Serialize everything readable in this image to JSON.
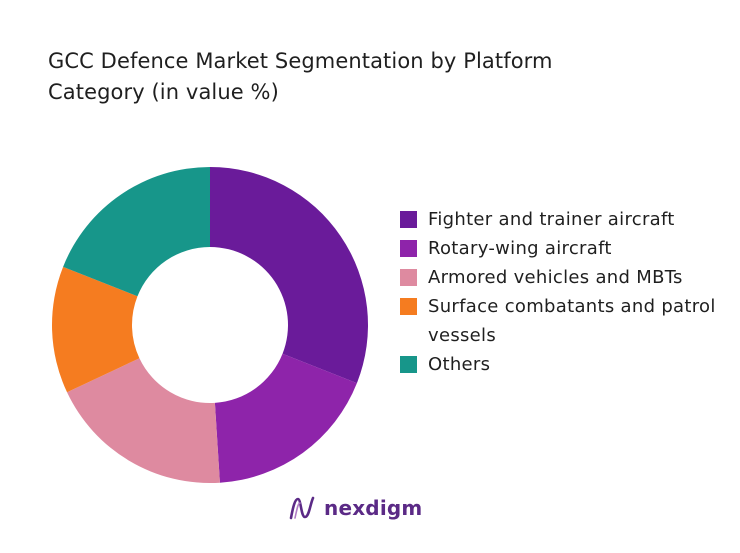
{
  "chart_data": {
    "type": "pie",
    "donut": true,
    "title": "GCC Defence Market Segmentation by Platform Category (in value %)",
    "title_lines": [
      "GCC Defence Market Segmentation by Platform",
      "Category (in value %)"
    ],
    "legend_position": "right",
    "slices": [
      {
        "label": "Fighter and trainer aircraft",
        "value": 31,
        "color": "#6a1b9a"
      },
      {
        "label": "Rotary-wing aircraft",
        "value": 18,
        "color": "#8e24aa"
      },
      {
        "label": "Armored vehicles and MBTs",
        "value": 19,
        "color": "#de8aa0"
      },
      {
        "label": "Surface combatants and patrol vessels",
        "value": 13,
        "color": "#f57c20"
      },
      {
        "label": "Others",
        "value": 19,
        "color": "#17968a"
      }
    ]
  },
  "brand": {
    "name": "nexdigm",
    "color": "#5b2a86",
    "icon": "nexdigm-logo-icon"
  }
}
